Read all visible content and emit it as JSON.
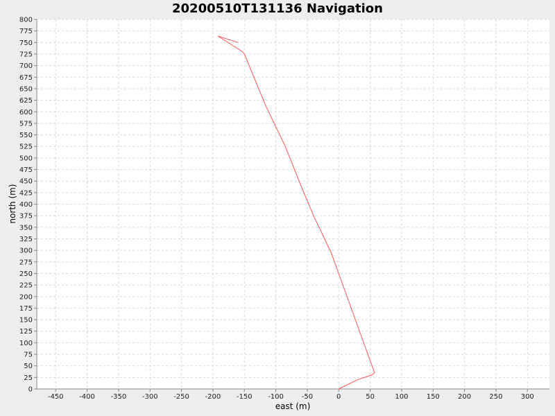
{
  "chart_data": {
    "type": "line",
    "title": "20200510T131136 Navigation",
    "xlabel": "east (m)",
    "ylabel": "north (m)",
    "xlim": [
      -480,
      335
    ],
    "ylim": [
      0,
      800
    ],
    "x_ticks": [
      -450,
      -400,
      -350,
      -300,
      -250,
      -200,
      -150,
      -100,
      -50,
      0,
      50,
      100,
      150,
      200,
      250,
      300
    ],
    "y_ticks": [
      0,
      25,
      50,
      75,
      100,
      125,
      150,
      175,
      200,
      225,
      250,
      275,
      300,
      325,
      350,
      375,
      400,
      425,
      450,
      475,
      500,
      525,
      550,
      575,
      600,
      625,
      650,
      675,
      700,
      725,
      750,
      775,
      800
    ],
    "grid": true,
    "legend": "none",
    "series": [
      {
        "color": "#ff5555",
        "points": [
          [
            0,
            0
          ],
          [
            30,
            20
          ],
          [
            52,
            30
          ],
          [
            57,
            35
          ],
          [
            -12,
            295
          ],
          [
            -40,
            375
          ],
          [
            -60,
            440
          ],
          [
            -85,
            525
          ],
          [
            -115,
            610
          ],
          [
            -150,
            725
          ],
          [
            -153,
            730
          ],
          [
            -192,
            764
          ],
          [
            -160,
            750
          ]
        ]
      }
    ]
  }
}
